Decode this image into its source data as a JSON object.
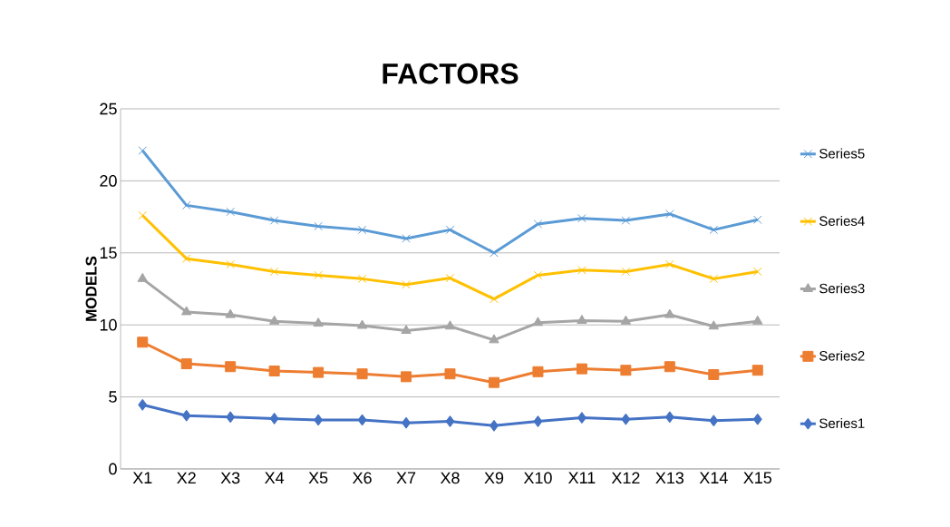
{
  "chart_data": {
    "type": "line",
    "title": "FACTORS",
    "ylabel": "MODELS",
    "categories": [
      "X1",
      "X2",
      "X3",
      "X4",
      "X5",
      "X6",
      "X7",
      "X8",
      "X9",
      "X10",
      "X11",
      "X12",
      "X13",
      "X14",
      "X15"
    ],
    "series": [
      {
        "name": "Series1",
        "color": "#4472c4",
        "marker": "diamond",
        "values": [
          4.45,
          3.7,
          3.6,
          3.5,
          3.4,
          3.4,
          3.2,
          3.3,
          3.0,
          3.3,
          3.55,
          3.45,
          3.6,
          3.35,
          3.45
        ]
      },
      {
        "name": "Series2",
        "color": "#ed7d31",
        "marker": "square",
        "values": [
          8.8,
          7.3,
          7.1,
          6.8,
          6.7,
          6.6,
          6.4,
          6.6,
          6.0,
          6.75,
          6.95,
          6.85,
          7.1,
          6.55,
          6.85
        ]
      },
      {
        "name": "Series3",
        "color": "#a5a5a5",
        "marker": "triangle",
        "values": [
          13.2,
          10.9,
          10.7,
          10.25,
          10.1,
          9.95,
          9.6,
          9.9,
          8.95,
          10.15,
          10.3,
          10.25,
          10.7,
          9.9,
          10.25
        ]
      },
      {
        "name": "Series4",
        "color": "#ffc000",
        "marker": "cross",
        "values": [
          17.6,
          14.6,
          14.2,
          13.7,
          13.45,
          13.2,
          12.8,
          13.25,
          11.8,
          13.45,
          13.8,
          13.7,
          14.2,
          13.2,
          13.7
        ]
      },
      {
        "name": "Series5",
        "color": "#5b9bd5",
        "marker": "cross",
        "values": [
          22.1,
          18.3,
          17.85,
          17.25,
          16.85,
          16.6,
          16.0,
          16.6,
          15.0,
          17.0,
          17.4,
          17.25,
          17.7,
          16.6,
          17.3
        ]
      }
    ],
    "ylim": [
      0,
      25
    ],
    "yticks": [
      0,
      5,
      10,
      15,
      20,
      25
    ],
    "grid": "y",
    "legend": "right",
    "line_style": "solid"
  }
}
